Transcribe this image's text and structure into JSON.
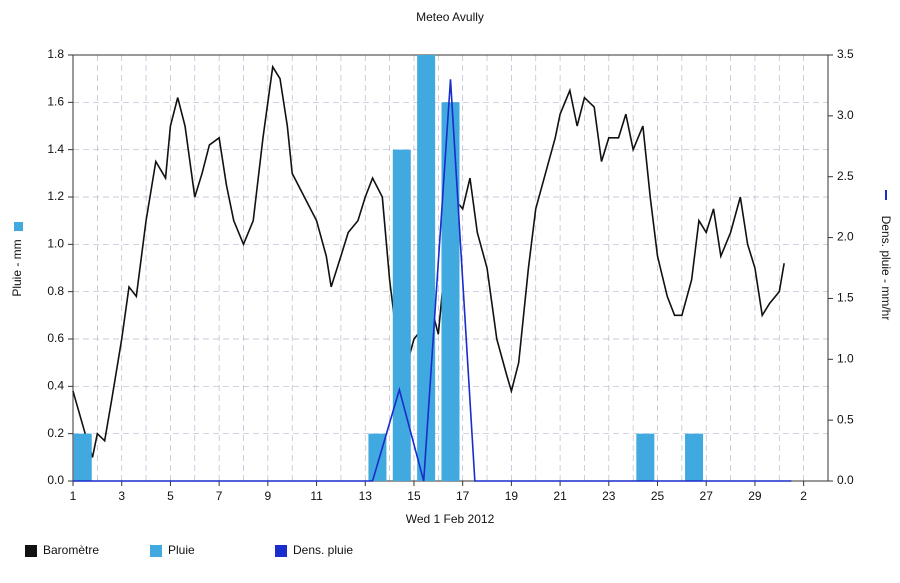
{
  "chart_data": {
    "type": "combo",
    "title": "Meteo  Avully",
    "xlabel": "Wed 1 Feb 2012",
    "ylabel": "Pluie - mm",
    "y2label": "Dens. pluie - mm/hr",
    "xlim": [
      1,
      32
    ],
    "xticks": [
      1,
      3,
      5,
      7,
      9,
      11,
      13,
      15,
      17,
      19,
      21,
      23,
      25,
      27,
      29,
      {
        "value": 31,
        "label": "2"
      }
    ],
    "ylim": [
      0,
      1.8
    ],
    "yticks": [
      {
        "value": 0,
        "label": "0.0"
      },
      0.2,
      0.4,
      0.6,
      0.8,
      {
        "value": 1,
        "label": "1.0"
      },
      1.2,
      1.4,
      1.6,
      1.8
    ],
    "y2lim": [
      0,
      3.5
    ],
    "y2ticks": [
      {
        "value": 0,
        "label": "0.0"
      },
      0.5,
      {
        "value": 1,
        "label": "1.0"
      },
      1.5,
      {
        "value": 2,
        "label": "2.0"
      },
      2.5,
      {
        "value": 3,
        "label": "3.0"
      },
      3.5
    ],
    "grid": true,
    "legend": "bottom",
    "series": [
      {
        "name": "Baromètre",
        "type": "line",
        "color": "#111111",
        "x": [
          1,
          1.5,
          1.8,
          2,
          2.3,
          2.6,
          3,
          3.3,
          3.6,
          4,
          4.4,
          4.8,
          5,
          5.3,
          5.6,
          6,
          6.3,
          6.6,
          7,
          7.3,
          7.6,
          8,
          8.4,
          8.8,
          9,
          9.2,
          9.5,
          9.8,
          10,
          10.5,
          11,
          11.4,
          11.6,
          12,
          12.3,
          12.7,
          13,
          13.3,
          13.7,
          14,
          14.3,
          14.6,
          15,
          15.4,
          15.8,
          16,
          16.3,
          16.6,
          17,
          17.3,
          17.6,
          18,
          18.4,
          18.8,
          19,
          19.3,
          19.7,
          20,
          20.4,
          20.8,
          21,
          21.4,
          21.7,
          22,
          22.4,
          22.7,
          23,
          23.4,
          23.7,
          24,
          24.4,
          24.7,
          25,
          25.4,
          25.7,
          26,
          26.4,
          26.7,
          27,
          27.3,
          27.6,
          28,
          28.4,
          28.7,
          29,
          29.3,
          29.6,
          30,
          30.2
        ],
        "values": [
          0.38,
          0.2,
          0.1,
          0.2,
          0.17,
          0.35,
          0.6,
          0.82,
          0.78,
          1.1,
          1.35,
          1.28,
          1.5,
          1.62,
          1.5,
          1.2,
          1.3,
          1.42,
          1.45,
          1.25,
          1.1,
          1.0,
          1.1,
          1.45,
          1.6,
          1.75,
          1.7,
          1.5,
          1.3,
          1.2,
          1.1,
          0.95,
          0.82,
          0.95,
          1.05,
          1.1,
          1.2,
          1.28,
          1.2,
          0.85,
          0.6,
          0.45,
          0.6,
          0.65,
          0.7,
          0.62,
          0.95,
          1.2,
          1.15,
          1.28,
          1.05,
          0.9,
          0.6,
          0.45,
          0.38,
          0.5,
          0.9,
          1.15,
          1.3,
          1.45,
          1.55,
          1.65,
          1.5,
          1.62,
          1.58,
          1.35,
          1.45,
          1.45,
          1.55,
          1.4,
          1.5,
          1.2,
          0.95,
          0.78,
          0.7,
          0.7,
          0.85,
          1.1,
          1.05,
          1.15,
          0.95,
          1.05,
          1.2,
          1.0,
          0.9,
          0.7,
          0.75,
          0.8,
          0.92
        ]
      },
      {
        "name": "Pluie",
        "type": "bar",
        "color": "#3fa9e0",
        "x": [
          1.4,
          13.5,
          14.5,
          15.5,
          16.5,
          24.5,
          26.5
        ],
        "values": [
          0.2,
          0.2,
          1.4,
          1.8,
          1.6,
          0.2,
          0.2
        ]
      },
      {
        "name": "Dens. pluie",
        "type": "line",
        "axis": "y2",
        "color": "#1a2ccc",
        "x": [
          1,
          13.3,
          14.4,
          15.4,
          16.5,
          17.5,
          30.5
        ],
        "values": [
          0,
          0,
          0.75,
          0,
          3.3,
          0,
          0
        ]
      }
    ]
  }
}
